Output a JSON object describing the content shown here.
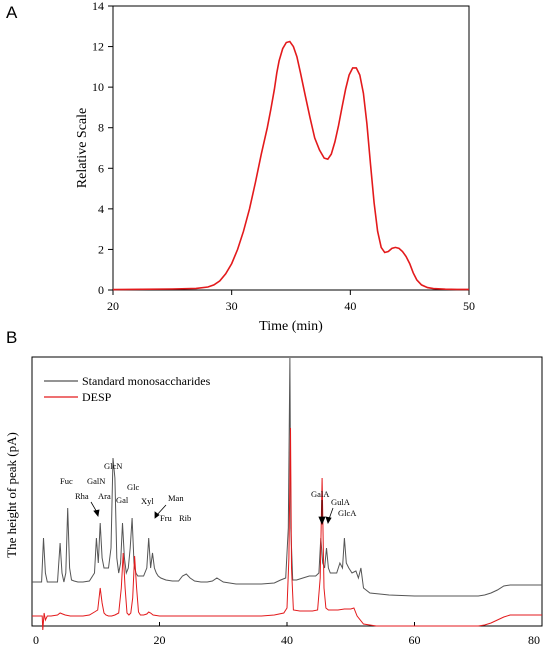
{
  "chart_data": [
    {
      "panel": "A",
      "type": "line",
      "xlabel": "Time (min)",
      "ylabel": "Relative Scale",
      "xlim": [
        20,
        50
      ],
      "ylim": [
        0,
        14
      ],
      "xticks": [
        20,
        30,
        40,
        50
      ],
      "yticks": [
        0,
        2,
        4,
        6,
        8,
        10,
        12,
        14
      ],
      "grid": false,
      "color": "#e31a1c",
      "series": [
        {
          "x": [
            20,
            25,
            27,
            28,
            28.5,
            29,
            29.5,
            30,
            30.5,
            31,
            31.5,
            32,
            32.5,
            33,
            33.3,
            33.6,
            33.8,
            34,
            34.3,
            34.6,
            34.9,
            35.2,
            35.5,
            35.8,
            36.2,
            36.6,
            37,
            37.4,
            37.8,
            38.1,
            38.4,
            38.7,
            39,
            39.3,
            39.6,
            39.9,
            40.2,
            40.5,
            40.8,
            41.1,
            41.4,
            41.7,
            42,
            42.3,
            42.6,
            42.9,
            43.2,
            43.5,
            43.8,
            44.1,
            44.4,
            44.7,
            45,
            45.3,
            45.6,
            46,
            46.5,
            47,
            48,
            49,
            50
          ],
          "y": [
            0.02,
            0.05,
            0.08,
            0.15,
            0.25,
            0.45,
            0.8,
            1.3,
            2.0,
            2.9,
            4.0,
            5.3,
            6.7,
            8.0,
            8.9,
            9.9,
            10.7,
            11.3,
            11.9,
            12.2,
            12.25,
            12.0,
            11.5,
            10.7,
            9.6,
            8.5,
            7.5,
            6.9,
            6.5,
            6.45,
            6.7,
            7.3,
            8.1,
            9.0,
            9.9,
            10.6,
            10.95,
            10.95,
            10.6,
            9.7,
            8.2,
            6.2,
            4.3,
            2.9,
            2.1,
            1.85,
            1.9,
            2.05,
            2.1,
            2.05,
            1.9,
            1.65,
            1.3,
            0.85,
            0.5,
            0.25,
            0.12,
            0.07,
            0.04,
            0.03,
            0.03
          ]
        }
      ]
    },
    {
      "panel": "B",
      "type": "line",
      "ylabel": "The height of peak (pA)",
      "xlim": [
        0,
        80
      ],
      "xticks": [
        0,
        20,
        40,
        60,
        80
      ],
      "yticks": [],
      "grid": false,
      "legend_position": "top-left",
      "series": [
        {
          "name": "Standard monosaccharides",
          "color": "#555555",
          "baseline": 0.36,
          "x": [
            0,
            1.5,
            1.8,
            2.1,
            2.4,
            3.0,
            4.0,
            4.4,
            4.7,
            5.0,
            5.3,
            5.6,
            5.9,
            6.2,
            6.6,
            7.2,
            8.0,
            9.0,
            9.8,
            10.1,
            10.4,
            10.7,
            11.0,
            11.3,
            11.6,
            12.0,
            12.4,
            12.7,
            13.0,
            13.3,
            13.6,
            13.9,
            14.2,
            14.5,
            14.8,
            15.1,
            15.4,
            15.7,
            16.0,
            16.3,
            16.6,
            17.0,
            17.5,
            18.0,
            18.3,
            18.6,
            18.9,
            19.2,
            19.5,
            19.8,
            20.2,
            21.0,
            22.0,
            23.0,
            23.6,
            24.2,
            24.8,
            25.5,
            26.5,
            27.5,
            28.3,
            29.0,
            30.0,
            32.0,
            34.0,
            36.0,
            38.0,
            39.0,
            39.8,
            40.2,
            40.45,
            40.6,
            40.9,
            41.5,
            42.5,
            43.5,
            44.5,
            45.0,
            45.3,
            45.6,
            45.9,
            46.2,
            46.5,
            46.8,
            47.2,
            47.8,
            48.3,
            48.7,
            49.0,
            49.3,
            49.7,
            50.2,
            50.8,
            51.2,
            51.6,
            52.0,
            53.0,
            56.0,
            60.0,
            65.0,
            70.0,
            71.0,
            72.0,
            73.0,
            74.0,
            75.0,
            80.0
          ],
          "y": [
            0.36,
            0.36,
            0.8,
            0.45,
            0.36,
            0.36,
            0.36,
            0.75,
            0.45,
            0.36,
            0.45,
            1.1,
            0.5,
            0.38,
            0.37,
            0.36,
            0.36,
            0.37,
            0.45,
            0.8,
            0.55,
            0.95,
            0.6,
            0.5,
            0.5,
            0.5,
            0.7,
            1.6,
            1.4,
            0.6,
            0.45,
            0.55,
            0.95,
            0.6,
            0.45,
            0.5,
            0.7,
            1.0,
            0.55,
            0.45,
            0.42,
            0.42,
            0.42,
            0.5,
            0.8,
            0.5,
            0.65,
            0.5,
            0.45,
            0.42,
            0.4,
            0.38,
            0.37,
            0.37,
            0.42,
            0.44,
            0.4,
            0.37,
            0.36,
            0.36,
            0.37,
            0.4,
            0.36,
            0.34,
            0.34,
            0.34,
            0.35,
            0.38,
            0.4,
            0.9,
            2.6,
            0.9,
            0.38,
            0.38,
            0.4,
            0.42,
            0.42,
            0.45,
            0.8,
            0.55,
            0.5,
            0.7,
            0.5,
            0.45,
            0.45,
            0.45,
            0.55,
            0.5,
            0.8,
            0.55,
            0.5,
            0.45,
            0.47,
            0.4,
            0.5,
            0.3,
            0.25,
            0.23,
            0.22,
            0.22,
            0.22,
            0.23,
            0.25,
            0.28,
            0.32,
            0.33,
            0.33
          ]
        },
        {
          "name": "DESP",
          "color": "#e31a1c",
          "baseline": 0.02,
          "x": [
            0,
            1.6,
            1.7,
            1.9,
            2.1,
            2.4,
            3.0,
            4.0,
            4.4,
            4.8,
            5.2,
            6.0,
            8.0,
            9.0,
            9.8,
            10.3,
            10.7,
            11.0,
            11.3,
            11.6,
            12.0,
            12.5,
            13.0,
            13.6,
            14.0,
            14.3,
            14.6,
            14.9,
            15.2,
            15.5,
            15.8,
            16.1,
            16.4,
            16.7,
            17.0,
            17.5,
            18.0,
            18.3,
            18.6,
            19.0,
            20.0,
            22.0,
            24.0,
            26.0,
            28.0,
            30.0,
            32.0,
            34.0,
            36.0,
            38.0,
            39.5,
            40.0,
            40.3,
            40.55,
            40.7,
            41.0,
            42.0,
            43.0,
            44.0,
            44.8,
            45.2,
            45.5,
            45.8,
            46.1,
            46.5,
            47.0,
            48.0,
            49.0,
            50.0,
            50.5,
            51.0,
            52.0,
            54.0,
            58.0,
            62.0,
            66.0,
            70.0,
            71.0,
            72.0,
            73.0,
            74.0,
            75.0,
            80.0
          ],
          "y": [
            0.02,
            0.02,
            -0.12,
            0.05,
            -0.02,
            0.02,
            0.02,
            0.03,
            0.05,
            0.04,
            0.03,
            0.02,
            0.02,
            0.03,
            0.06,
            0.08,
            0.3,
            0.15,
            0.05,
            0.03,
            0.02,
            0.02,
            0.03,
            0.05,
            0.3,
            0.65,
            0.3,
            0.05,
            0.03,
            0.05,
            0.2,
            0.62,
            0.3,
            0.06,
            0.03,
            0.03,
            0.04,
            0.06,
            0.05,
            0.03,
            0.02,
            0.02,
            0.02,
            0.02,
            0.02,
            0.02,
            0.02,
            0.02,
            0.02,
            0.03,
            0.05,
            0.1,
            0.6,
            1.9,
            0.5,
            0.08,
            0.07,
            0.07,
            0.07,
            0.08,
            0.4,
            1.4,
            0.3,
            0.1,
            0.08,
            0.08,
            0.08,
            0.09,
            0.09,
            0.1,
            0.02,
            -0.06,
            -0.08,
            -0.08,
            -0.08,
            -0.08,
            -0.08,
            -0.07,
            -0.05,
            -0.02,
            0.01,
            0.03,
            0.03
          ]
        }
      ],
      "annotations": [
        "Fuc",
        "Rha",
        "GalN",
        "Ara",
        "GlcN",
        "Gal",
        "Glc",
        "Xyl",
        "Man",
        "Fru",
        "Rib",
        "GalA",
        "GulA",
        "GlcA"
      ]
    }
  ],
  "panels": {
    "a_label": "A",
    "b_label": "B"
  },
  "legend": [
    "Standard monosaccharides",
    "DESP"
  ]
}
